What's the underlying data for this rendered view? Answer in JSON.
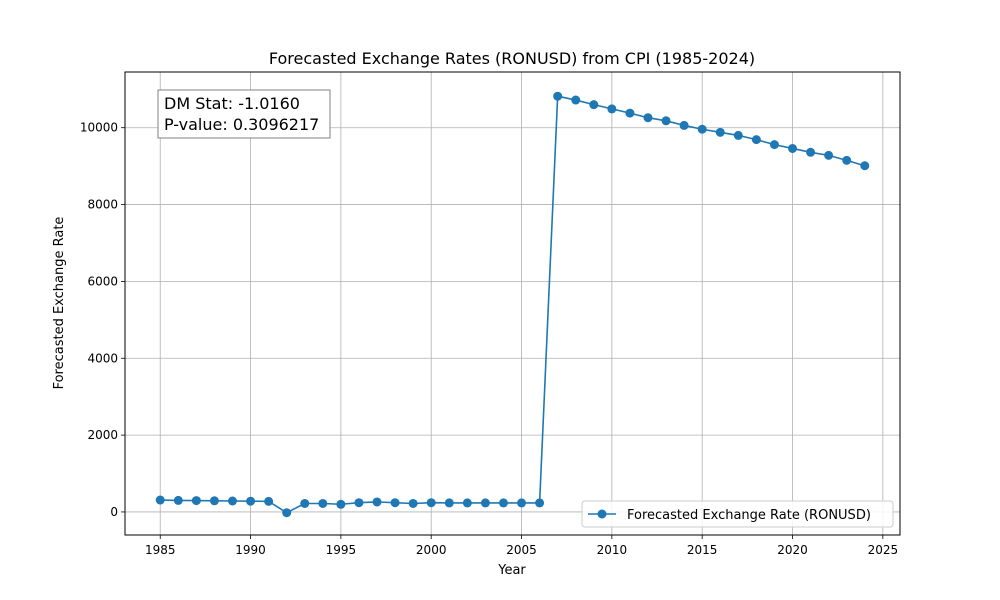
{
  "chart_data": {
    "type": "line",
    "title": "Forecasted Exchange Rates (RONUSD) from CPI (1985-2024)",
    "xlabel": "Year",
    "ylabel": "Forecasted Exchange Rate",
    "xlim": [
      1983.05,
      2025.95
    ],
    "ylim": [
      -600,
      11450
    ],
    "xticks": [
      1985,
      1990,
      1995,
      2000,
      2005,
      2010,
      2015,
      2020,
      2025
    ],
    "yticks": [
      0,
      2000,
      4000,
      6000,
      8000,
      10000
    ],
    "grid": true,
    "legend_position": "lower-right",
    "series": [
      {
        "name": "Forecasted Exchange Rate (RONUSD)",
        "color": "#1f77b4",
        "marker": "circle",
        "x": [
          1985,
          1986,
          1987,
          1988,
          1989,
          1990,
          1991,
          1992,
          1993,
          1994,
          1995,
          1996,
          1997,
          1998,
          1999,
          2000,
          2001,
          2002,
          2003,
          2004,
          2005,
          2006,
          2007,
          2008,
          2009,
          2010,
          2011,
          2012,
          2013,
          2014,
          2015,
          2016,
          2017,
          2018,
          2019,
          2020,
          2021,
          2022,
          2023,
          2024
        ],
        "y": [
          310,
          300,
          295,
          290,
          285,
          280,
          275,
          -20,
          220,
          220,
          200,
          240,
          260,
          240,
          220,
          240,
          235,
          235,
          235,
          235,
          235,
          235,
          10820,
          10720,
          10600,
          10490,
          10380,
          10260,
          10180,
          10060,
          9960,
          9880,
          9800,
          9690,
          9560,
          9460,
          9360,
          9280,
          9150,
          9010
        ]
      }
    ],
    "annotation": {
      "line1": "DM Stat: -1.0160",
      "line2": "P-value: 0.3096217"
    }
  }
}
